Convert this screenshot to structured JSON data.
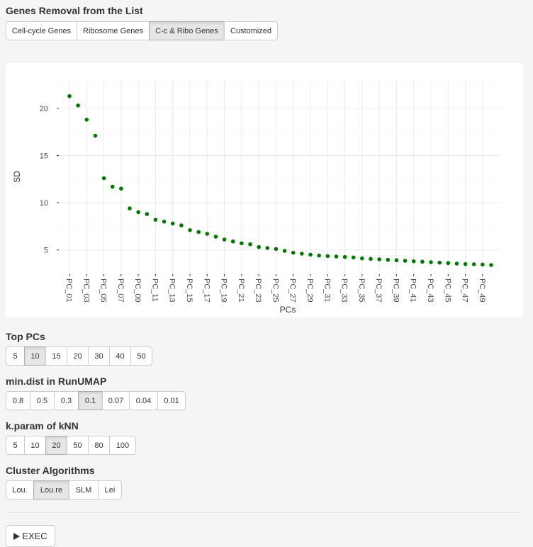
{
  "gene_removal": {
    "title": "Genes Removal from the List",
    "options": [
      "Cell-cycle Genes",
      "Ribosome Genes",
      "C-c & Ribo Genes",
      "Customized"
    ],
    "selected": "C-c & Ribo Genes"
  },
  "top_pcs": {
    "title": "Top PCs",
    "options": [
      "5",
      "10",
      "15",
      "20",
      "30",
      "40",
      "50"
    ],
    "selected": "10"
  },
  "min_dist": {
    "title": "min.dist in RunUMAP",
    "options": [
      "0.8",
      "0.5",
      "0.3",
      "0.1",
      "0.07",
      "0.04",
      "0.01"
    ],
    "selected": "0.1"
  },
  "k_param": {
    "title": "k.param of kNN",
    "options": [
      "5",
      "10",
      "20",
      "50",
      "80",
      "100"
    ],
    "selected": "20"
  },
  "cluster_alg": {
    "title": "Cluster Algorithms",
    "options": [
      "Lou.",
      "Lou.re",
      "SLM",
      "Lei"
    ],
    "selected": "Lou.re"
  },
  "exec_label": "EXEC",
  "colors": {
    "point": "#007800",
    "grid": "#ebebeb"
  },
  "chart_data": {
    "type": "scatter",
    "xlabel": "PCs",
    "ylabel": "SD",
    "x": [
      "PC_01",
      "PC_02",
      "PC_03",
      "PC_04",
      "PC_05",
      "PC_06",
      "PC_07",
      "PC_08",
      "PC_09",
      "PC_10",
      "PC_11",
      "PC_12",
      "PC_13",
      "PC_14",
      "PC_15",
      "PC_16",
      "PC_17",
      "PC_18",
      "PC_19",
      "PC_20",
      "PC_21",
      "PC_22",
      "PC_23",
      "PC_24",
      "PC_25",
      "PC_26",
      "PC_27",
      "PC_28",
      "PC_29",
      "PC_30",
      "PC_31",
      "PC_32",
      "PC_33",
      "PC_34",
      "PC_35",
      "PC_36",
      "PC_37",
      "PC_38",
      "PC_39",
      "PC_40",
      "PC_41",
      "PC_42",
      "PC_43",
      "PC_44",
      "PC_45",
      "PC_46",
      "PC_47",
      "PC_48",
      "PC_49",
      "PC_50"
    ],
    "y": [
      21.3,
      20.3,
      18.8,
      17.1,
      12.6,
      11.7,
      11.5,
      9.4,
      9.0,
      8.8,
      8.2,
      8.0,
      7.8,
      7.6,
      7.1,
      6.9,
      6.7,
      6.4,
      6.1,
      5.9,
      5.7,
      5.6,
      5.3,
      5.2,
      5.1,
      4.9,
      4.7,
      4.6,
      4.5,
      4.4,
      4.35,
      4.3,
      4.25,
      4.2,
      4.1,
      4.05,
      4.0,
      3.95,
      3.9,
      3.85,
      3.8,
      3.75,
      3.7,
      3.65,
      3.6,
      3.55,
      3.5,
      3.48,
      3.45,
      3.4
    ],
    "x_tick_labels": [
      "PC_01",
      "PC_03",
      "PC_05",
      "PC_07",
      "PC_09",
      "PC_11",
      "PC_13",
      "PC_15",
      "PC_17",
      "PC_19",
      "PC_21",
      "PC_23",
      "PC_25",
      "PC_27",
      "PC_29",
      "PC_31",
      "PC_33",
      "PC_35",
      "PC_37",
      "PC_39",
      "PC_41",
      "PC_43",
      "PC_45",
      "PC_47",
      "PC_49"
    ],
    "y_ticks": [
      5,
      10,
      15,
      20
    ],
    "ylim": [
      2.5,
      23
    ],
    "grid": true,
    "legend": "none"
  }
}
